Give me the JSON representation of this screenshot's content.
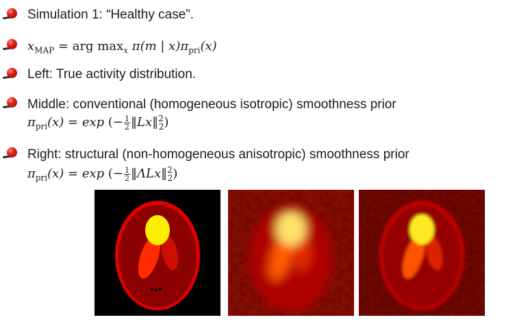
{
  "bullets": [
    {
      "text": "Simulation 1: “Healthy case”."
    },
    {
      "text": "Left: True activity distribution."
    },
    {
      "text": "Middle: conventional (homogeneous isotropic) smoothness prior"
    },
    {
      "text": "Right: structural (non-homogeneous anisotropic) smoothness prior"
    }
  ],
  "formulas": {
    "xmap_lhs": "x",
    "xmap_sub": "MAP",
    "xmap_op": " = arg max",
    "xmap_var": "x",
    "xmap_rhs": " π(m | x)π",
    "xmap_sub2": "pri",
    "xmap_end": "(x)",
    "prior_lhs": "π",
    "prior_sub": "pri",
    "prior_arg": "(x) = exp",
    "prior_open": " (−",
    "frac_num": "1",
    "frac_den": "2",
    "prior1_norm": "‖Lx‖",
    "prior2_norm": "‖ΛLx‖",
    "norm_sup": "2",
    "norm_sub": "2",
    "prior_close": ")"
  },
  "images": [
    {
      "name": "true-activity",
      "style": "phantom"
    },
    {
      "name": "conventional-prior",
      "style": "blurry"
    },
    {
      "name": "structural-prior",
      "style": "sharp-noisy"
    }
  ]
}
